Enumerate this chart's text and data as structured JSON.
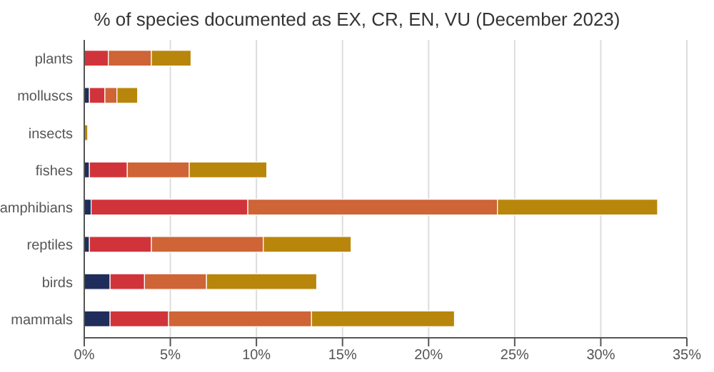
{
  "chart_data": {
    "type": "bar",
    "orientation": "horizontal",
    "stacked": true,
    "title": "% of species documented as EX, CR, EN, VU (December 2023)",
    "categories": [
      "plants",
      "molluscs",
      "insects",
      "fishes",
      "amphibians",
      "reptiles",
      "birds",
      "mammals"
    ],
    "series": [
      {
        "color": "#1f2d5c",
        "values": [
          0,
          0.3,
          null,
          0.3,
          0.4,
          0.3,
          1.5,
          1.5
        ]
      },
      {
        "color": "#d0343a",
        "values": [
          1.4,
          0.9,
          null,
          2.2,
          9.1,
          3.6,
          2.0,
          3.4
        ]
      },
      {
        "color": "#cf6436",
        "values": [
          2.5,
          0.7,
          null,
          3.6,
          14.5,
          6.5,
          3.6,
          8.3
        ]
      },
      {
        "color": "#b8860b",
        "values": [
          2.3,
          1.2,
          0.2,
          4.5,
          9.3,
          5.1,
          6.4,
          8.3
        ]
      }
    ],
    "xlim": [
      0,
      35
    ],
    "xticks": [
      {
        "value": 0,
        "label": "0%"
      },
      {
        "value": 5,
        "label": "5%"
      },
      {
        "value": 10,
        "label": "10%"
      },
      {
        "value": 15,
        "label": "15%"
      },
      {
        "value": 20,
        "label": "20%"
      },
      {
        "value": 25,
        "label": "25%"
      },
      {
        "value": 30,
        "label": "30%"
      },
      {
        "value": 35,
        "label": "35%"
      }
    ],
    "grid": "x",
    "legend": false
  }
}
